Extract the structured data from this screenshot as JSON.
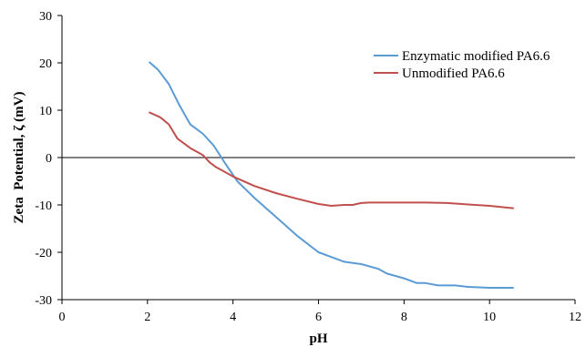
{
  "chart_data": {
    "type": "line",
    "title": "",
    "xlabel": "pH",
    "ylabel": "Zeta  Potential, ζ (mV)",
    "xlim": [
      0,
      12
    ],
    "ylim": [
      -30,
      30
    ],
    "x_ticks": [
      0,
      2,
      4,
      6,
      8,
      10,
      12
    ],
    "y_ticks": [
      30,
      20,
      10,
      0,
      -10,
      -20,
      -30
    ],
    "grid": false,
    "zero_line": true,
    "legend_position": "top-right",
    "series": [
      {
        "name": "Enzymatic modified PA6.6",
        "color": "#5b9bd5",
        "x": [
          2.05,
          2.25,
          2.5,
          2.75,
          3.0,
          3.3,
          3.55,
          3.8,
          4.1,
          4.5,
          5.0,
          5.5,
          6.0,
          6.3,
          6.6,
          7.0,
          7.4,
          7.6,
          8.0,
          8.3,
          8.5,
          8.8,
          9.2,
          9.5,
          10.0,
          10.55
        ],
        "y": [
          20.1,
          18.5,
          15.5,
          11.0,
          7.0,
          5.0,
          2.5,
          -1.0,
          -5.0,
          -8.5,
          -12.5,
          -16.5,
          -20.0,
          -21.0,
          -22.0,
          -22.5,
          -23.5,
          -24.5,
          -25.5,
          -26.5,
          -26.5,
          -27.0,
          -27.0,
          -27.3,
          -27.5,
          -27.5
        ]
      },
      {
        "name": "Unmodified PA6.6",
        "color": "#c0504d",
        "x": [
          2.05,
          2.3,
          2.5,
          2.7,
          3.0,
          3.3,
          3.45,
          3.6,
          4.0,
          4.5,
          5.0,
          5.5,
          6.0,
          6.3,
          6.6,
          6.8,
          7.0,
          7.2,
          7.5,
          8.0,
          8.5,
          9.0,
          9.5,
          10.0,
          10.55
        ],
        "y": [
          9.5,
          8.5,
          7.0,
          4.0,
          2.0,
          0.5,
          -1.0,
          -2.0,
          -4.0,
          -6.0,
          -7.5,
          -8.7,
          -9.8,
          -10.2,
          -10.0,
          -10.0,
          -9.6,
          -9.5,
          -9.5,
          -9.5,
          -9.5,
          -9.6,
          -9.9,
          -10.2,
          -10.7
        ]
      }
    ]
  }
}
